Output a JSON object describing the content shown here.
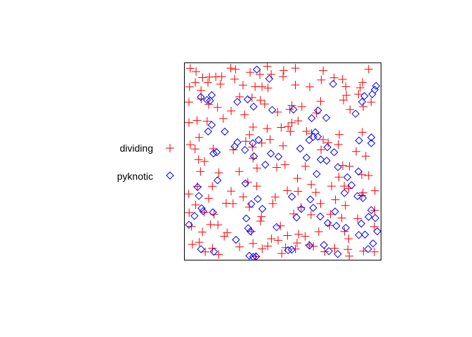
{
  "chart_data": {
    "type": "scatter",
    "title": "",
    "xlabel": "",
    "ylabel": "",
    "xlim": [
      0,
      1
    ],
    "ylim": [
      0,
      1
    ],
    "grid": false,
    "axes_visible": false,
    "legend_position": "left",
    "series": [
      {
        "name": "dividing",
        "color": "#ff0000",
        "marker": "plus",
        "points": [
          [
            0.018,
            0.984
          ],
          [
            0.048,
            0.967
          ],
          [
            0.082,
            0.936
          ],
          [
            0.118,
            0.939
          ],
          [
            0.151,
            0.94
          ],
          [
            0.182,
            0.941
          ],
          [
            0.229,
            0.985
          ],
          [
            0.254,
            0.979
          ],
          [
            0.33,
            0.963
          ],
          [
            0.381,
            0.952
          ],
          [
            0.42,
            0.995
          ],
          [
            0.44,
            0.953
          ],
          [
            0.505,
            0.973
          ],
          [
            0.566,
            0.985
          ],
          [
            0.711,
            0.972
          ],
          [
            0.768,
            0.935
          ],
          [
            0.948,
            0.98
          ],
          [
            0.014,
            0.888
          ],
          [
            0.044,
            0.91
          ],
          [
            0.074,
            0.869
          ],
          [
            0.11,
            0.91
          ],
          [
            0.175,
            0.902
          ],
          [
            0.249,
            0.928
          ],
          [
            0.293,
            0.897
          ],
          [
            0.356,
            0.889
          ],
          [
            0.392,
            0.889
          ],
          [
            0.423,
            0.882
          ],
          [
            0.502,
            0.941
          ],
          [
            0.566,
            0.898
          ],
          [
            0.641,
            0.888
          ],
          [
            0.701,
            0.924
          ],
          [
            0.812,
            0.927
          ],
          [
            0.904,
            0.883
          ],
          [
            0.829,
            0.889
          ],
          [
            0.917,
            0.911
          ],
          [
            0.011,
            0.809
          ],
          [
            0.075,
            0.825
          ],
          [
            0.114,
            0.797
          ],
          [
            0.16,
            0.781
          ],
          [
            0.275,
            0.836
          ],
          [
            0.34,
            0.832
          ],
          [
            0.406,
            0.799
          ],
          [
            0.384,
            0.818
          ],
          [
            0.473,
            0.757
          ],
          [
            0.537,
            0.771
          ],
          [
            0.548,
            0.791
          ],
          [
            0.6,
            0.785
          ],
          [
            0.676,
            0.752
          ],
          [
            0.698,
            0.813
          ],
          [
            0.817,
            0.819
          ],
          [
            0.832,
            0.844
          ],
          [
            0.851,
            0.77
          ],
          [
            0.895,
            0.85
          ],
          [
            0.92,
            0.785
          ],
          [
            0.961,
            0.809
          ],
          [
            0.011,
            0.702
          ],
          [
            0.053,
            0.713
          ],
          [
            0.106,
            0.709
          ],
          [
            0.19,
            0.723
          ],
          [
            0.231,
            0.763
          ],
          [
            0.301,
            0.743
          ],
          [
            0.345,
            0.679
          ],
          [
            0.419,
            0.671
          ],
          [
            0.492,
            0.677
          ],
          [
            0.528,
            0.682
          ],
          [
            0.548,
            0.701
          ],
          [
            0.58,
            0.711
          ],
          [
            0.65,
            0.645
          ],
          [
            0.711,
            0.613
          ],
          [
            0.795,
            0.64
          ],
          [
            0.915,
            0.652
          ],
          [
            0.018,
            0.587
          ],
          [
            0.064,
            0.625
          ],
          [
            0.138,
            0.566
          ],
          [
            0.242,
            0.56
          ],
          [
            0.307,
            0.605
          ],
          [
            0.327,
            0.639
          ],
          [
            0.342,
            0.575
          ],
          [
            0.345,
            0.517
          ],
          [
            0.391,
            0.596
          ],
          [
            0.434,
            0.614
          ],
          [
            0.502,
            0.581
          ],
          [
            0.54,
            0.656
          ],
          [
            0.624,
            0.657
          ],
          [
            0.7,
            0.561
          ],
          [
            0.737,
            0.597
          ],
          [
            0.79,
            0.588
          ],
          [
            0.813,
            0.479
          ],
          [
            0.883,
            0.552
          ],
          [
            0.933,
            0.528
          ],
          [
            0.043,
            0.565
          ],
          [
            0.061,
            0.51
          ],
          [
            0.071,
            0.448
          ],
          [
            0.092,
            0.5
          ],
          [
            0.167,
            0.441
          ],
          [
            0.273,
            0.448
          ],
          [
            0.366,
            0.466
          ],
          [
            0.469,
            0.469
          ],
          [
            0.512,
            0.483
          ],
          [
            0.577,
            0.412
          ],
          [
            0.618,
            0.475
          ],
          [
            0.649,
            0.38
          ],
          [
            0.793,
            0.419
          ],
          [
            0.848,
            0.475
          ],
          [
            0.912,
            0.431
          ],
          [
            0.948,
            0.427
          ],
          [
            0.01,
            0.331
          ],
          [
            0.055,
            0.37
          ],
          [
            0.114,
            0.308
          ],
          [
            0.133,
            0.371
          ],
          [
            0.231,
            0.346
          ],
          [
            0.318,
            0.393
          ],
          [
            0.365,
            0.372
          ],
          [
            0.461,
            0.315
          ],
          [
            0.524,
            0.349
          ],
          [
            0.58,
            0.345
          ],
          [
            0.673,
            0.339
          ],
          [
            0.698,
            0.281
          ],
          [
            0.755,
            0.372
          ],
          [
            0.821,
            0.372
          ],
          [
            0.844,
            0.36
          ],
          [
            0.919,
            0.337
          ],
          [
            0.981,
            0.348
          ],
          [
            0.012,
            0.234
          ],
          [
            0.046,
            0.274
          ],
          [
            0.091,
            0.236
          ],
          [
            0.142,
            0.226
          ],
          [
            0.205,
            0.283
          ],
          [
            0.241,
            0.281
          ],
          [
            0.294,
            0.316
          ],
          [
            0.326,
            0.263
          ],
          [
            0.389,
            0.213
          ],
          [
            0.448,
            0.281
          ],
          [
            0.557,
            0.227
          ],
          [
            0.596,
            0.262
          ],
          [
            0.648,
            0.223
          ],
          [
            0.749,
            0.226
          ],
          [
            0.775,
            0.301
          ],
          [
            0.808,
            0.206
          ],
          [
            0.827,
            0.271
          ],
          [
            0.912,
            0.323
          ],
          [
            0.98,
            0.246
          ],
          [
            0.024,
            0.163
          ],
          [
            0.081,
            0.133
          ],
          [
            0.123,
            0.172
          ],
          [
            0.162,
            0.17
          ],
          [
            0.21,
            0.13
          ],
          [
            0.337,
            0.136
          ],
          [
            0.384,
            0.19
          ],
          [
            0.441,
            0.098
          ],
          [
            0.488,
            0.165
          ],
          [
            0.525,
            0.115
          ],
          [
            0.583,
            0.122
          ],
          [
            0.617,
            0.111
          ],
          [
            0.688,
            0.135
          ],
          [
            0.744,
            0.168
          ],
          [
            0.822,
            0.136
          ],
          [
            0.844,
            0.098
          ],
          [
            0.891,
            0.203
          ],
          [
            0.978,
            0.161
          ],
          [
            0.029,
            0.069
          ],
          [
            0.065,
            0.08
          ],
          [
            0.096,
            0.03
          ],
          [
            0.133,
            0.049
          ],
          [
            0.195,
            0.111
          ],
          [
            0.275,
            0.056
          ],
          [
            0.345,
            0.074
          ],
          [
            0.393,
            0.046
          ],
          [
            0.422,
            0.06
          ],
          [
            0.476,
            0.09
          ],
          [
            0.495,
            0.022
          ],
          [
            0.566,
            0.045
          ],
          [
            0.575,
            0.076
          ],
          [
            0.638,
            0.066
          ],
          [
            0.66,
            0.059
          ],
          [
            0.719,
            0.031
          ],
          [
            0.771,
            0.049
          ],
          [
            0.84,
            0.043
          ],
          [
            0.847,
            0.008
          ],
          [
            0.921,
            0.034
          ],
          [
            0.978,
            0.03
          ],
          [
            0.166,
            0.016
          ],
          [
            0.36,
            0.006
          ],
          [
            0.515,
            0.052
          ]
        ]
      },
      {
        "name": "pyknotic",
        "color": "#0000ff",
        "marker": "diamond",
        "points": [
          [
            0.365,
            0.978
          ],
          [
            0.43,
            0.93
          ],
          [
            0.763,
            0.903
          ],
          [
            0.914,
            0.81
          ],
          [
            0.987,
            0.893
          ],
          [
            0.13,
            0.845
          ],
          [
            0.263,
            0.81
          ],
          [
            0.317,
            0.823
          ],
          [
            0.348,
            0.785
          ],
          [
            0.445,
            0.768
          ],
          [
            0.556,
            0.77
          ],
          [
            0.684,
            0.765
          ],
          [
            0.727,
            0.727
          ],
          [
            0.88,
            0.748
          ],
          [
            0.926,
            0.84
          ],
          [
            0.967,
            0.85
          ],
          [
            0.98,
            0.873
          ],
          [
            0.073,
            0.835
          ],
          [
            0.105,
            0.82
          ],
          [
            0.121,
            0.816
          ],
          [
            0.111,
            0.656
          ],
          [
            0.198,
            0.655
          ],
          [
            0.249,
            0.578
          ],
          [
            0.303,
            0.56
          ],
          [
            0.35,
            0.527
          ],
          [
            0.409,
            0.483
          ],
          [
            0.438,
            0.541
          ],
          [
            0.591,
            0.567
          ],
          [
            0.624,
            0.52
          ],
          [
            0.638,
            0.611
          ],
          [
            0.67,
            0.652
          ],
          [
            0.683,
            0.629
          ],
          [
            0.733,
            0.574
          ],
          [
            0.768,
            0.548
          ],
          [
            0.788,
            0.471
          ],
          [
            0.837,
            0.418
          ],
          [
            0.895,
            0.448
          ],
          [
            0.898,
            0.609
          ],
          [
            0.962,
            0.595
          ],
          [
            0.962,
            0.625
          ],
          [
            0.659,
            0.628
          ],
          [
            0.651,
            0.725
          ],
          [
            0.13,
            0.69
          ],
          [
            0.139,
            0.542
          ],
          [
            0.156,
            0.548
          ],
          [
            0.264,
            0.6
          ],
          [
            0.344,
            0.595
          ],
          [
            0.374,
            0.612
          ],
          [
            0.478,
            0.525
          ],
          [
            0.677,
            0.435
          ],
          [
            0.698,
            0.51
          ],
          [
            0.729,
            0.504
          ],
          [
            0.822,
            0.336
          ],
          [
            0.859,
            0.377
          ],
          [
            0.89,
            0.32
          ],
          [
            0.918,
            0.31
          ],
          [
            0.063,
            0.321
          ],
          [
            0.077,
            0.257
          ],
          [
            0.136,
            0.236
          ],
          [
            0.16,
            0.402
          ],
          [
            0.305,
            0.386
          ],
          [
            0.31,
            0.204
          ],
          [
            0.336,
            0.279
          ],
          [
            0.37,
            0.305
          ],
          [
            0.394,
            0.254
          ],
          [
            0.468,
            0.159
          ],
          [
            0.548,
            0.317
          ],
          [
            0.572,
            0.209
          ],
          [
            0.597,
            0.253
          ],
          [
            0.644,
            0.303
          ],
          [
            0.659,
            0.259
          ],
          [
            0.696,
            0.214
          ],
          [
            0.735,
            0.18
          ],
          [
            0.773,
            0.24
          ],
          [
            0.78,
            0.165
          ],
          [
            0.829,
            0.155
          ],
          [
            0.91,
            0.177
          ],
          [
            0.929,
            0.12
          ],
          [
            0.948,
            0.212
          ],
          [
            0.962,
            0.247
          ],
          [
            0.983,
            0.206
          ],
          [
            0.056,
            0.367
          ],
          [
            0.04,
            0.217
          ],
          [
            0.085,
            0.242
          ],
          [
            0.011,
            0.171
          ],
          [
            0.074,
            0.044
          ],
          [
            0.141,
            0.031
          ],
          [
            0.256,
            0.093
          ],
          [
            0.32,
            0.153
          ],
          [
            0.332,
            0.137
          ],
          [
            0.326,
            0.01
          ],
          [
            0.361,
            0.006
          ],
          [
            0.346,
            0.004
          ],
          [
            0.528,
            0.039
          ],
          [
            0.547,
            0.042
          ],
          [
            0.64,
            0.063
          ],
          [
            0.715,
            0.066
          ],
          [
            0.741,
            0.034
          ],
          [
            0.787,
            0.019
          ],
          [
            0.897,
            0.118
          ],
          [
            0.945,
            0.045
          ],
          [
            0.971,
            0.074
          ],
          [
            0.993,
            0.137
          ]
        ]
      }
    ]
  }
}
